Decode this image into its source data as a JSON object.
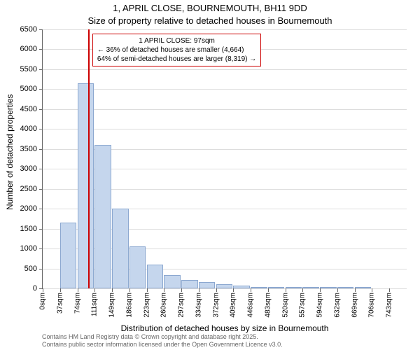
{
  "title": "1, APRIL CLOSE, BOURNEMOUTH, BH11 9DD",
  "subtitle": "Size of property relative to detached houses in Bournemouth",
  "yaxis_title": "Number of detached properties",
  "xaxis_title": "Distribution of detached houses by size in Bournemouth",
  "ylim": [
    0,
    6500
  ],
  "ytick_step": 500,
  "yticks": [
    0,
    500,
    1000,
    1500,
    2000,
    2500,
    3000,
    3500,
    4000,
    4500,
    5000,
    5500,
    6000,
    6500
  ],
  "categories": [
    "0sqm",
    "37sqm",
    "74sqm",
    "111sqm",
    "149sqm",
    "186sqm",
    "223sqm",
    "260sqm",
    "297sqm",
    "334sqm",
    "372sqm",
    "409sqm",
    "446sqm",
    "483sqm",
    "520sqm",
    "557sqm",
    "594sqm",
    "632sqm",
    "669sqm",
    "706sqm",
    "743sqm"
  ],
  "values": [
    0,
    1650,
    5150,
    3600,
    2000,
    1050,
    600,
    330,
    210,
    150,
    100,
    70,
    30,
    20,
    10,
    10,
    5,
    5,
    5,
    0,
    0
  ],
  "bar_color": "#c5d6ed",
  "bar_border_color": "#8ca8d0",
  "background_color": "#ffffff",
  "grid_color": "#dddddd",
  "marker": {
    "position_sqm": 97,
    "color": "#cc0000"
  },
  "annotation": {
    "line1": "1 APRIL CLOSE: 97sqm",
    "line2": "← 36% of detached houses are smaller (4,664)",
    "line3": "64% of semi-detached houses are larger (8,319) →",
    "border_color": "#cc0000",
    "background_color": "#ffffff"
  },
  "footer_line1": "Contains HM Land Registry data © Crown copyright and database right 2025.",
  "footer_line2": "Contains public sector information licensed under the Open Government Licence v3.0.",
  "title_fontsize": 13,
  "label_fontsize": 12,
  "tick_fontsize": 11
}
